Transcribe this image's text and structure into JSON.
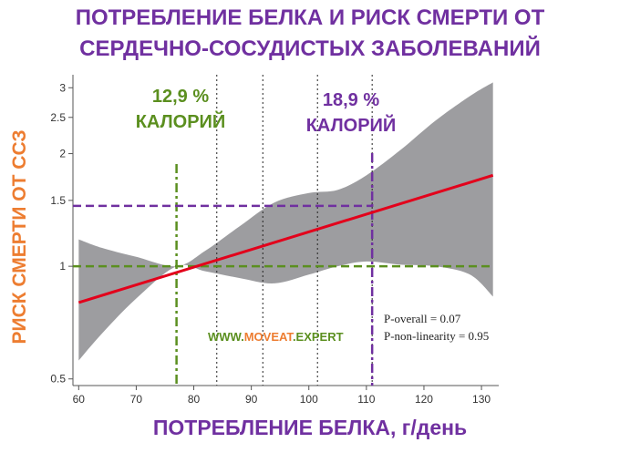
{
  "title_line1": "ПОТРЕБЛЕНИЕ БЕЛКА И РИСК СМЕРТИ ОТ",
  "title_line2": "СЕРДЕЧНО-СОСУДИСТЫХ ЗАБОЛЕВАНИЙ",
  "xlabel": "ПОТРЕБЛЕНИЕ БЕЛКА, г/день",
  "ylabel": "РИСК СМЕРТИ ОТ ССЗ",
  "annotation_left": {
    "line1": "12,9 %",
    "line2": "КАЛОРИЙ"
  },
  "annotation_right": {
    "line1": "18,9 %",
    "line2": "КАЛОРИЙ"
  },
  "watermark": {
    "prefix": "WWW.",
    "brand": "MOVEAT",
    "suffix": ".EXPERT"
  },
  "stats": {
    "overall": "P-overall = 0.07",
    "nonlinearity": "P-non-linearity = 0.95"
  },
  "colors": {
    "line": "#e3001b",
    "band": "#9d9da0",
    "green": "#5b8f1f",
    "purple": "#7030a0",
    "orange": "#ed7d31"
  },
  "chart_data": {
    "type": "line",
    "x_ticks": [
      60,
      70,
      80,
      90,
      100,
      110,
      120,
      130
    ],
    "y_ticks": [
      0.5,
      1,
      1.5,
      2,
      2.5,
      3
    ],
    "y_tick_labels": [
      "0.5",
      "1",
      "1.5",
      "2",
      "2.5",
      "3"
    ],
    "y_scale": "log",
    "xlim": [
      59,
      133
    ],
    "ylim": [
      0.48,
      3.25
    ],
    "line": {
      "x": [
        60,
        132
      ],
      "y": [
        0.8,
        1.75
      ]
    },
    "ci_upper": {
      "x": [
        60,
        64,
        70,
        77,
        82,
        88,
        94,
        100,
        105,
        110,
        116,
        122,
        128,
        132
      ],
      "y": [
        1.18,
        1.12,
        1.06,
        1.0,
        1.1,
        1.28,
        1.48,
        1.57,
        1.6,
        1.75,
        2.05,
        2.45,
        2.85,
        3.1
      ]
    },
    "ci_lower": {
      "x": [
        60,
        64,
        70,
        77,
        82,
        88,
        94,
        100,
        105,
        110,
        116,
        122,
        128,
        132
      ],
      "y": [
        0.56,
        0.66,
        0.82,
        1.0,
        0.97,
        0.93,
        0.9,
        0.95,
        1.0,
        1.03,
        1.01,
        1.0,
        0.95,
        0.83
      ]
    },
    "reference_lines": {
      "black_vertical_x": [
        84,
        92,
        101.5,
        111
      ],
      "green_vertical_x": 77,
      "green_horizontal_y": 1.0,
      "purple_vertical_x": 111,
      "purple_horizontal_y": 1.45
    }
  }
}
